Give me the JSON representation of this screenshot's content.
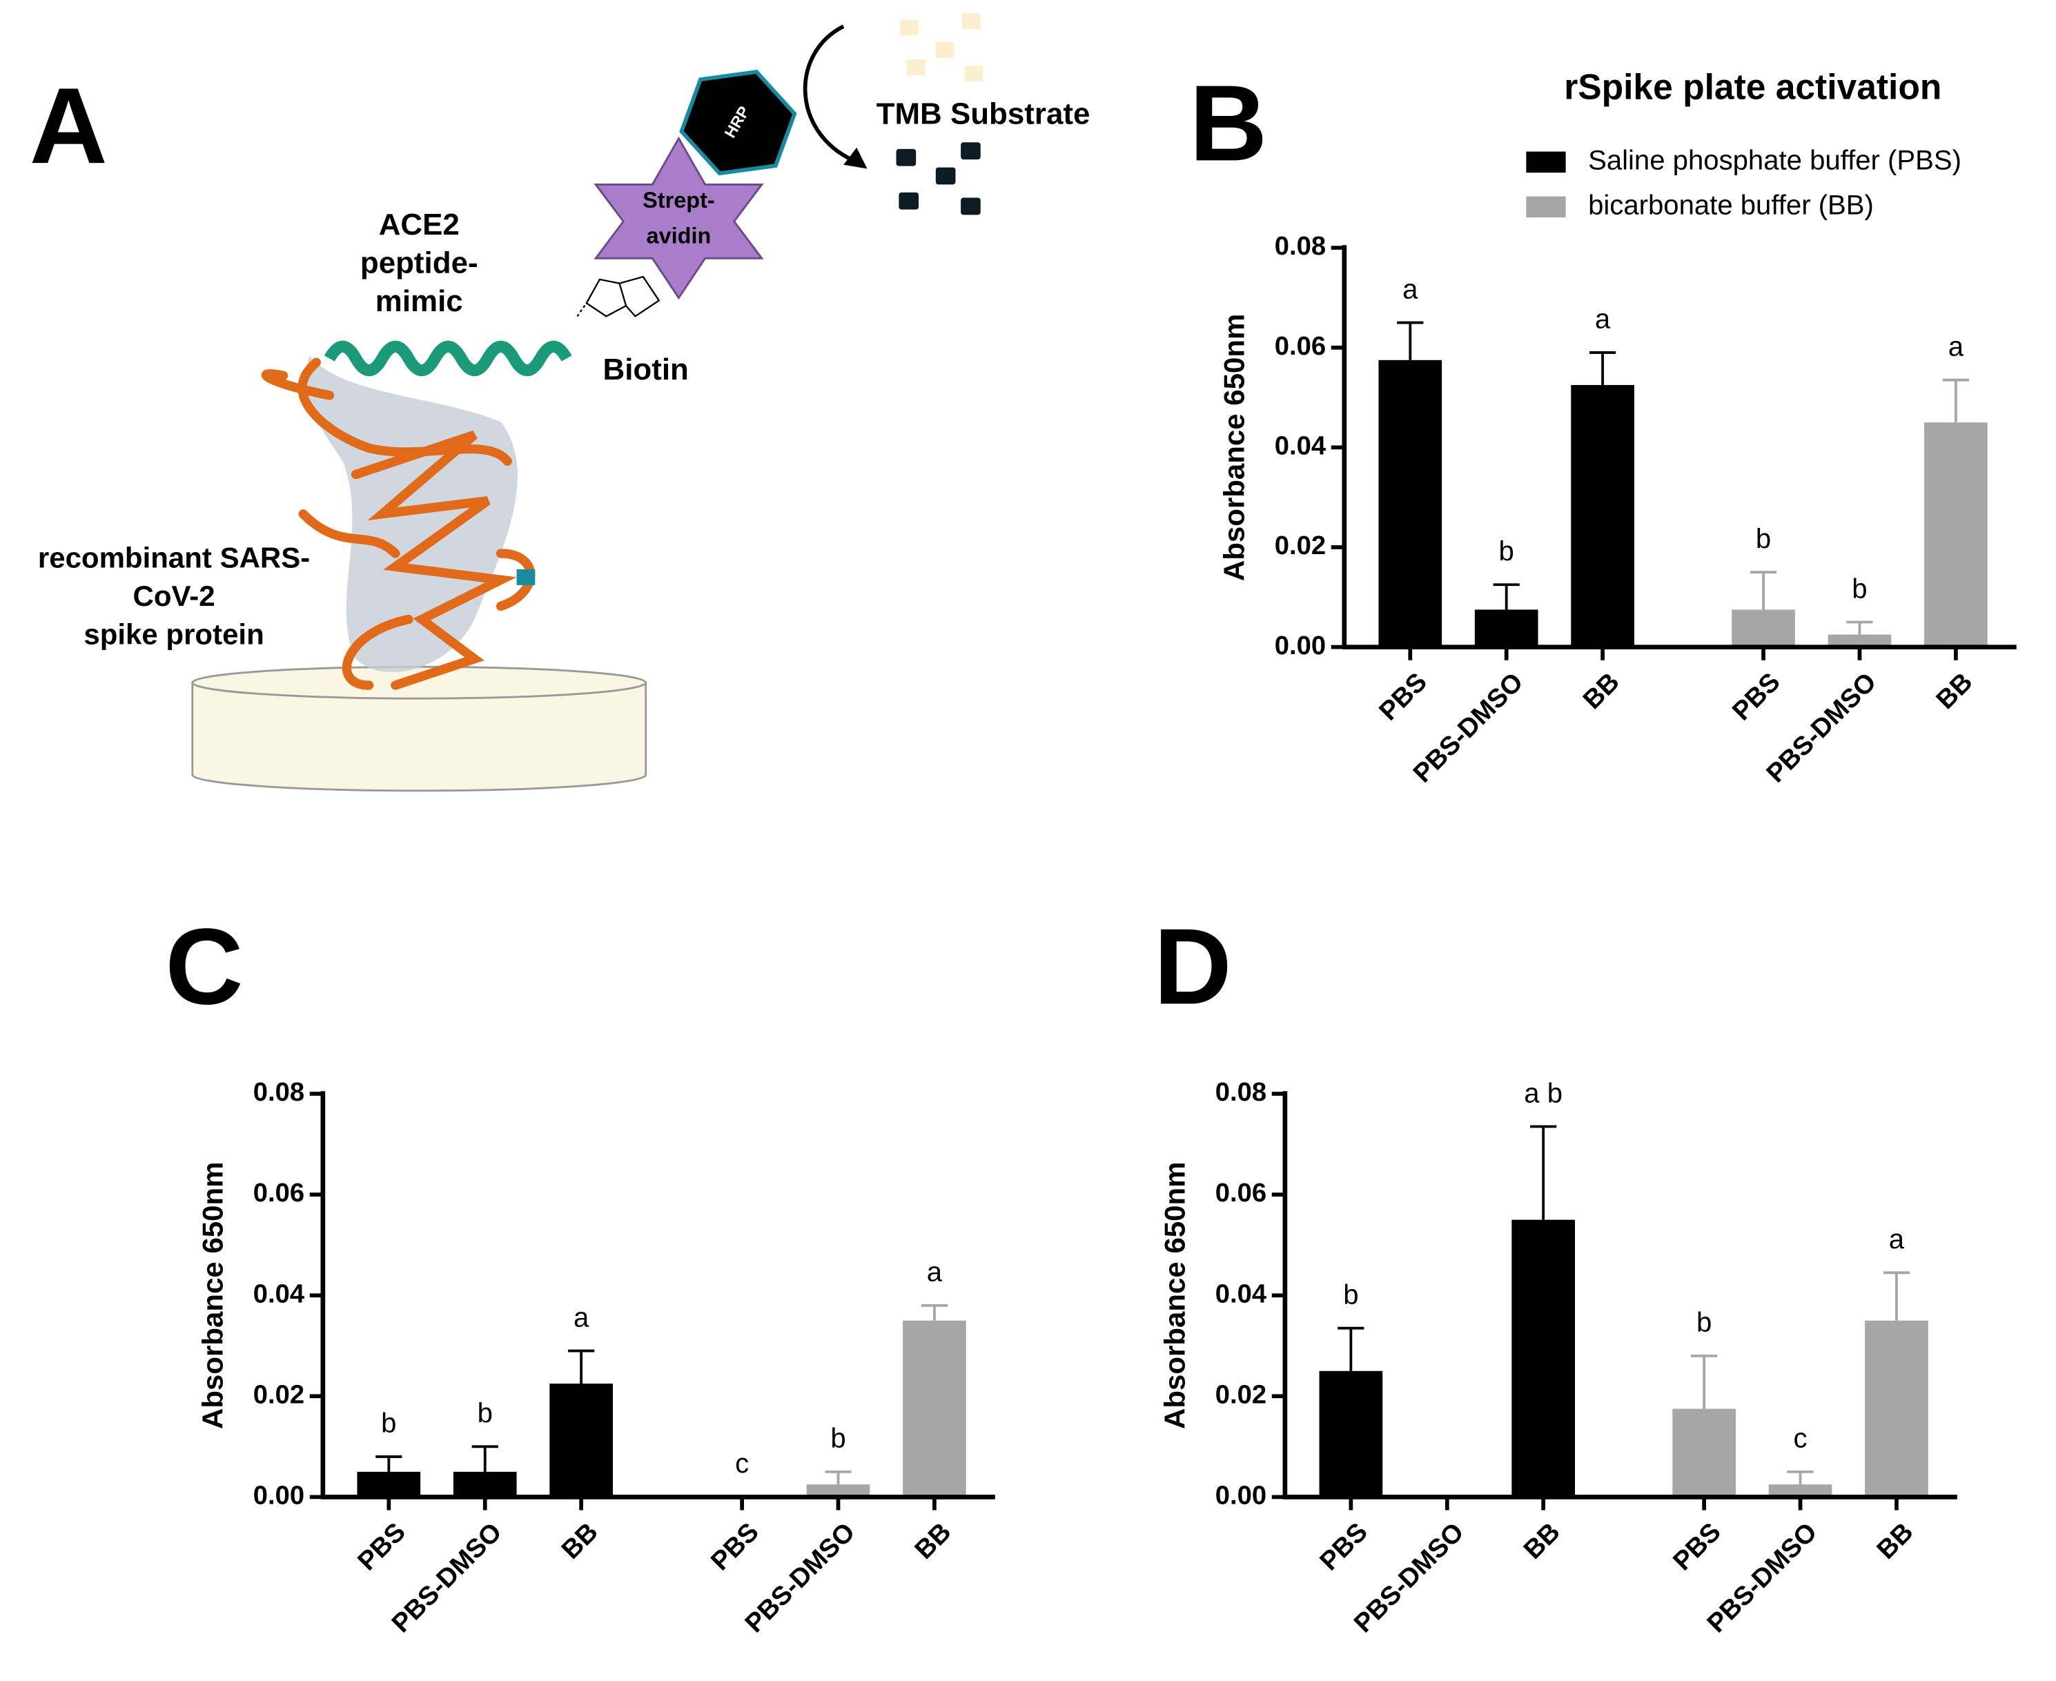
{
  "diagram": {
    "panel": "A",
    "helix_label": [
      "ACE2",
      "peptide-",
      "mimic"
    ],
    "biotin": "Biotin",
    "protein_label": [
      "recombinant SARS-",
      "CoV-2",
      "spike protein"
    ],
    "streptavidin": [
      "Strept-",
      "avidin"
    ],
    "hrp": "HRP",
    "substrate": "TMB Substrate"
  },
  "chart_data": [
    {
      "panel": "B",
      "type": "bar",
      "title": "rSpike plate activation",
      "y_label": "Absorbance 650nm",
      "categories": [
        "PBS",
        "PBS-DMSO",
        "BB"
      ],
      "ylim": [
        0,
        0.08
      ],
      "yticks": [
        {
          "value": 0,
          "label": "0.00"
        },
        {
          "value": 0.02,
          "label": "0.02"
        },
        {
          "value": 0.04,
          "label": "0.04"
        },
        {
          "value": 0.06,
          "label": "0.06"
        },
        {
          "value": 0.08,
          "label": "0.08"
        }
      ],
      "legend": "top-right",
      "series": [
        {
          "name": "Saline phosphate buffer (PBS)",
          "color": "#000000",
          "values": [
            0.0575,
            0.0075,
            0.0525
          ],
          "errors": [
            0.0075,
            0.005,
            0.0065
          ],
          "letters": [
            "a",
            "b",
            "a"
          ]
        },
        {
          "name": "bicarbonate buffer (BB)",
          "color": "#a6a6a6",
          "values": [
            0.0075,
            0.0025,
            0.045
          ],
          "errors": [
            0.0075,
            0.0025,
            0.0085
          ],
          "letters": [
            "b",
            "b",
            "a"
          ]
        }
      ]
    },
    {
      "panel": "C",
      "type": "bar",
      "y_label": "Absorbance 650nm",
      "categories": [
        "PBS",
        "PBS-DMSO",
        "BB"
      ],
      "ylim": [
        0,
        0.08
      ],
      "yticks": [
        {
          "value": 0,
          "label": "0.00"
        },
        {
          "value": 0.02,
          "label": "0.02"
        },
        {
          "value": 0.04,
          "label": "0.04"
        },
        {
          "value": 0.06,
          "label": "0.06"
        },
        {
          "value": 0.08,
          "label": "0.08"
        }
      ],
      "series": [
        {
          "color": "#000000",
          "values": [
            0.005,
            0.005,
            0.0225
          ],
          "errors": [
            0.003,
            0.005,
            0.0065
          ],
          "letters": [
            "b",
            "b",
            "a"
          ]
        },
        {
          "color": "#a6a6a6",
          "values": [
            0,
            0.0025,
            0.035
          ],
          "errors": [
            0,
            0.0025,
            0.003
          ],
          "letters": [
            "c",
            "b",
            "a"
          ]
        }
      ]
    },
    {
      "panel": "D",
      "type": "bar",
      "y_label": "Absorbance 650nm",
      "categories": [
        "PBS",
        "PBS-DMSO",
        "BB"
      ],
      "ylim": [
        0,
        0.08
      ],
      "yticks": [
        {
          "value": 0,
          "label": "0.00"
        },
        {
          "value": 0.02,
          "label": "0.02"
        },
        {
          "value": 0.04,
          "label": "0.04"
        },
        {
          "value": 0.06,
          "label": "0.06"
        },
        {
          "value": 0.08,
          "label": "0.08"
        }
      ],
      "series": [
        {
          "color": "#000000",
          "values": [
            0.025,
            null,
            0.055
          ],
          "errors": [
            0.0085,
            null,
            0.0185
          ],
          "letters": [
            "b",
            null,
            "a b"
          ]
        },
        {
          "color": "#a6a6a6",
          "values": [
            0.0175,
            0.0025,
            0.035
          ],
          "errors": [
            0.0105,
            0.0025,
            0.0095
          ],
          "letters": [
            "b",
            "c",
            "a"
          ]
        }
      ]
    }
  ]
}
